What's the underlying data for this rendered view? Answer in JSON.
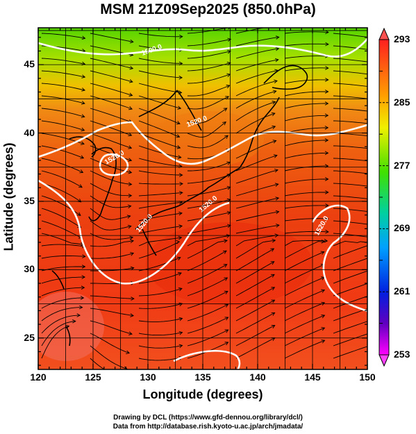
{
  "title": "MSM 21Z09Sep2025 (850.0hPa)",
  "x_axis": {
    "label": "Longitude (degrees)",
    "ticks": [
      "120",
      "125",
      "130",
      "135",
      "140",
      "145",
      "150"
    ]
  },
  "y_axis": {
    "label": "Latitude  (degrees)",
    "ticks": [
      "25",
      "30",
      "35",
      "40",
      "45"
    ]
  },
  "colorbar": {
    "ticks": [
      "293",
      "285",
      "277",
      "269",
      "261",
      "253"
    ],
    "range": [
      253,
      293
    ]
  },
  "contour_labels": [
    "1500.0",
    "1520.0",
    "1520.0",
    "1520.0",
    "1520.0",
    "1520.0"
  ],
  "credits": {
    "line1": "Drawing by DCL (https://www.gfd-dennou.org/library/dcl/)",
    "line2": "Data from http://database.rish.kyoto-u.ac.jp/arch/jmadata/"
  },
  "map_extent": {
    "lon": [
      120,
      150
    ],
    "lat": [
      22.7,
      47.7
    ]
  }
}
